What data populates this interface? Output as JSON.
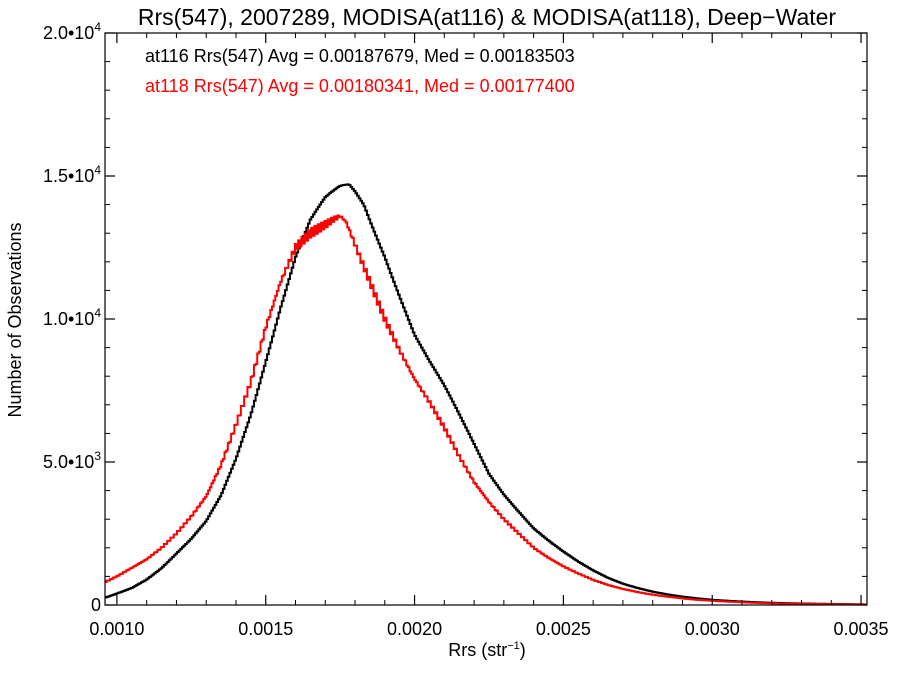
{
  "chart_data": {
    "type": "line",
    "title": "Rrs(547), 2007289, MODISA(at116) & MODISA(at118), Deep−Water",
    "xlabel": "Rrs (str",
    "xlabel_sup": "−1",
    "xlabel_close": ")",
    "ylabel": "Number of Observations",
    "xlim": [
      0.00096,
      0.00352
    ],
    "ylim": [
      0,
      20000
    ],
    "xticks": [
      {
        "value": 0.001,
        "label": "0.0010"
      },
      {
        "value": 0.0015,
        "label": "0.0015"
      },
      {
        "value": 0.002,
        "label": "0.0020"
      },
      {
        "value": 0.0025,
        "label": "0.0025"
      },
      {
        "value": 0.003,
        "label": "0.0030"
      },
      {
        "value": 0.0035,
        "label": "0.0035"
      }
    ],
    "yticks": [
      {
        "value": 0,
        "base": "0",
        "exp": ""
      },
      {
        "value": 5000,
        "base": "5.0•10",
        "exp": "3"
      },
      {
        "value": 10000,
        "base": "1.0•10",
        "exp": "4"
      },
      {
        "value": 15000,
        "base": "1.5•10",
        "exp": "4"
      },
      {
        "value": 20000,
        "base": "2.0•10",
        "exp": "4"
      }
    ],
    "grid": false,
    "legend_position": "top-left",
    "annotations": [
      {
        "text": "at116 Rrs(547) Avg = 0.00187679, Med = 0.00183503",
        "color": "#000000"
      },
      {
        "text": "at118 Rrs(547) Avg = 0.00180341, Med = 0.00177400",
        "color": "#ff0000"
      }
    ],
    "series": [
      {
        "color": "#000000",
        "style": "step",
        "x": [
          0.00096,
          0.001,
          0.00105,
          0.0011,
          0.00115,
          0.0012,
          0.00125,
          0.0013,
          0.00135,
          0.0014,
          0.00145,
          0.0015,
          0.00155,
          0.0016,
          0.00165,
          0.0017,
          0.00175,
          0.00178,
          0.0018,
          0.00183,
          0.00185,
          0.0019,
          0.00195,
          0.002,
          0.00205,
          0.0021,
          0.00215,
          0.0022,
          0.00225,
          0.0023,
          0.00235,
          0.0024,
          0.00245,
          0.0025,
          0.00255,
          0.0026,
          0.00265,
          0.0027,
          0.00275,
          0.0028,
          0.00285,
          0.0029,
          0.00295,
          0.003,
          0.00305,
          0.0031,
          0.00315,
          0.0032,
          0.00325,
          0.0033,
          0.00335,
          0.0034,
          0.00345,
          0.0035,
          0.00352
        ],
        "y": [
          250,
          400,
          600,
          900,
          1300,
          1800,
          2300,
          2900,
          3800,
          5100,
          6700,
          8600,
          10500,
          12200,
          13400,
          14100,
          14500,
          14600,
          14400,
          14000,
          13500,
          12300,
          10900,
          9500,
          8500,
          7600,
          6600,
          5600,
          4600,
          3900,
          3300,
          2700,
          2250,
          1850,
          1500,
          1200,
          950,
          750,
          600,
          470,
          370,
          290,
          230,
          180,
          150,
          120,
          100,
          80,
          65,
          55,
          45,
          38,
          30,
          25,
          22
        ]
      },
      {
        "color": "#ff0000",
        "style": "step",
        "x": [
          0.00096,
          0.001,
          0.00105,
          0.0011,
          0.00115,
          0.0012,
          0.00125,
          0.0013,
          0.00135,
          0.0014,
          0.00145,
          0.0015,
          0.00155,
          0.0016,
          0.00165,
          0.0017,
          0.00173,
          0.00175,
          0.00177,
          0.0018,
          0.00185,
          0.0019,
          0.00195,
          0.002,
          0.00205,
          0.0021,
          0.00215,
          0.0022,
          0.00225,
          0.0023,
          0.00235,
          0.0024,
          0.00245,
          0.0025,
          0.00255,
          0.0026,
          0.00265,
          0.0027,
          0.00275,
          0.0028,
          0.00285,
          0.0029,
          0.00295,
          0.003,
          0.00305,
          0.0031,
          0.00315,
          0.0032,
          0.00325,
          0.0033,
          0.00335,
          0.0034,
          0.00345,
          0.0035,
          0.00352
        ],
        "y": [
          800,
          1000,
          1300,
          1600,
          2000,
          2500,
          3100,
          3800,
          4900,
          6300,
          7800,
          9700,
          11300,
          12500,
          13000,
          13300,
          13500,
          13600,
          13400,
          12600,
          11300,
          10000,
          8900,
          7900,
          7100,
          6200,
          5200,
          4300,
          3600,
          3000,
          2500,
          2000,
          1650,
          1350,
          1100,
          880,
          700,
          560,
          450,
          360,
          290,
          230,
          180,
          150,
          120,
          95,
          75,
          60,
          50,
          40,
          32,
          27,
          22,
          18,
          15
        ]
      }
    ]
  }
}
